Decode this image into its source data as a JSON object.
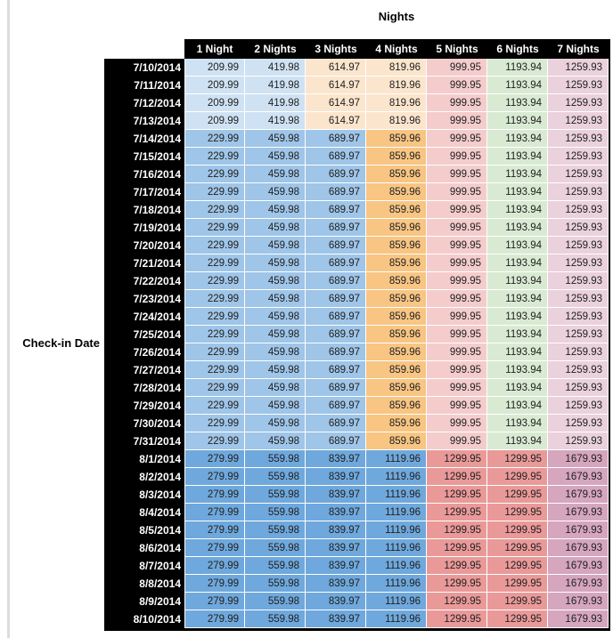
{
  "page": {
    "background": "#ffffff",
    "left_edge_color": "#dcdcdc"
  },
  "chart_data": {
    "type": "table",
    "title": "Nights",
    "row_axis_label": "Check-in Date",
    "columns": [
      "1 Night",
      "2 Nights",
      "3 Nights",
      "4 Nights",
      "5 Nights",
      "6 Nights",
      "7 Nights"
    ],
    "header_bg": "#000000",
    "header_text_color": "#ffffff",
    "row_header_bg": "#000000",
    "row_header_text_color": "#ffffff",
    "value_text_color": "#212121",
    "palette": {
      "blue_light": "#cfe2f3",
      "blue_mid": "#9fc5e8",
      "blue_dark": "#6fa8dc",
      "orange_light": "#fce5cd",
      "orange_mid": "#f8c583",
      "red_light": "#f4cccc",
      "red_dark": "#ea9999",
      "green_light": "#d9ead3",
      "purple_light": "#ead1dc",
      "purple_dark": "#d5a6bd"
    },
    "row_groups": [
      {
        "dates": [
          "7/10/2014",
          "7/11/2014",
          "7/12/2014",
          "7/13/2014"
        ],
        "values": [
          "209.99",
          "419.98",
          "614.97",
          "819.96",
          "999.95",
          "1193.94",
          "1259.93"
        ],
        "cell_colors": [
          "blue_light",
          "blue_light",
          "orange_light",
          "orange_light",
          "red_light",
          "green_light",
          "purple_light"
        ]
      },
      {
        "dates": [
          "7/14/2014",
          "7/15/2014",
          "7/16/2014",
          "7/17/2014",
          "7/18/2014",
          "7/19/2014",
          "7/20/2014",
          "7/21/2014",
          "7/22/2014",
          "7/23/2014",
          "7/24/2014",
          "7/25/2014",
          "7/26/2014",
          "7/27/2014",
          "7/28/2014",
          "7/29/2014",
          "7/30/2014",
          "7/31/2014"
        ],
        "values": [
          "229.99",
          "459.98",
          "689.97",
          "859.96",
          "999.95",
          "1193.94",
          "1259.93"
        ],
        "cell_colors": [
          "blue_mid",
          "blue_mid",
          "blue_mid",
          "orange_mid",
          "red_light",
          "green_light",
          "purple_light"
        ]
      },
      {
        "dates": [
          "8/1/2014",
          "8/2/2014",
          "8/3/2014",
          "8/4/2014",
          "8/5/2014",
          "8/6/2014",
          "8/7/2014",
          "8/8/2014",
          "8/9/2014",
          "8/10/2014"
        ],
        "values": [
          "279.99",
          "559.98",
          "839.97",
          "1119.96",
          "1299.95",
          "1299.95",
          "1679.93"
        ],
        "cell_colors": [
          "blue_dark",
          "blue_dark",
          "blue_dark",
          "blue_dark",
          "red_dark",
          "red_dark",
          "purple_dark"
        ]
      }
    ]
  }
}
